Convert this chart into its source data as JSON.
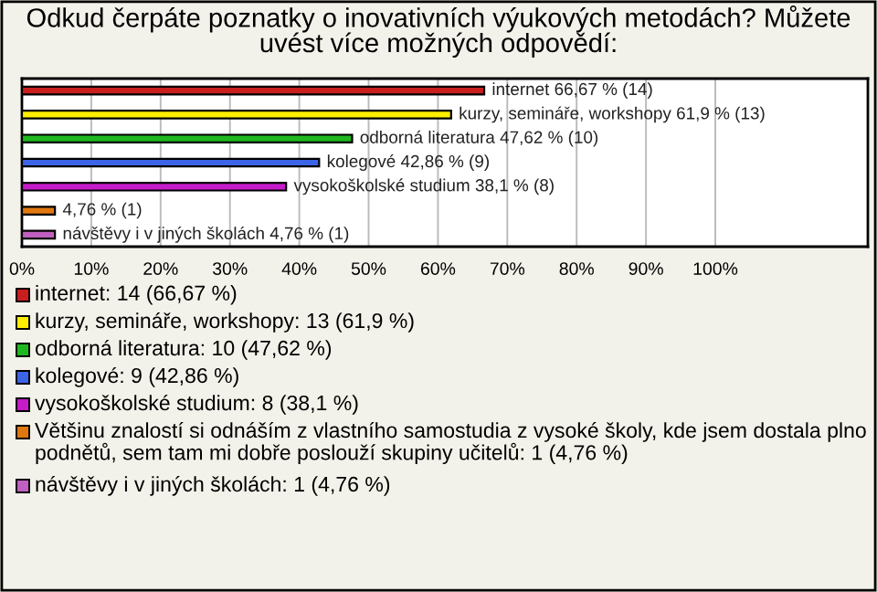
{
  "chart_data": {
    "type": "bar",
    "orientation": "horizontal",
    "title": "Odkud čerpáte poznatky o inovativních výukových metodách? Můžete uvést více možných odpovědí:",
    "categories": [
      null,
      null,
      null,
      null,
      null,
      null,
      null
    ],
    "series": [
      {
        "name": "internet: 14 (66,67 %)",
        "color": "#c81e1e",
        "values": [
          66.67,
          null,
          null,
          null,
          null,
          null,
          null
        ],
        "value_labels": [
          "internet 66,67 % (14)",
          null,
          null,
          null,
          null,
          null,
          null
        ]
      },
      {
        "name": "kurzy, semináře, workshopy: 13 (61,9 %)",
        "color": "#ffee00",
        "values": [
          null,
          61.9,
          null,
          null,
          null,
          null,
          null
        ],
        "value_labels": [
          null,
          "kurzy, semináře, workshopy 61,9 % (13)",
          null,
          null,
          null,
          null,
          null
        ]
      },
      {
        "name": "odborná literatura: 10 (47,62 %)",
        "color": "#20b820",
        "values": [
          null,
          null,
          47.62,
          null,
          null,
          null,
          null
        ],
        "value_labels": [
          null,
          null,
          "odborná literatura 47,62 % (10)",
          null,
          null,
          null,
          null
        ]
      },
      {
        "name": "kolegové: 9 (42,86 %)",
        "color": "#3c64e6",
        "values": [
          null,
          null,
          null,
          42.86,
          null,
          null,
          null
        ],
        "value_labels": [
          null,
          null,
          null,
          "kolegové 42,86 % (9)",
          null,
          null,
          null
        ]
      },
      {
        "name": "vysokoškolské studium: 8 (38,1 %)",
        "color": "#c41cc8",
        "values": [
          null,
          null,
          null,
          null,
          38.1,
          null,
          null
        ],
        "value_labels": [
          null,
          null,
          null,
          null,
          "vysokoškolské studium 38,1 % (8)",
          null,
          null
        ]
      },
      {
        "name": "Většinu znalostí si odnáším z vlastního samostudia z vysoké školy, kde jsem dostala plno podnětů, sem tam mi dobře poslouží skupiny učitelů: 1 (4,76 %)",
        "color": "#e07810",
        "values": [
          null,
          null,
          null,
          null,
          null,
          4.76,
          null
        ],
        "value_labels": [
          null,
          null,
          null,
          null,
          null,
          "4,76 % (1)",
          null
        ]
      },
      {
        "name": "návštěvy i v jiných školách: 1 (4,76 %)",
        "color": "#c060c0",
        "values": [
          null,
          null,
          null,
          null,
          null,
          null,
          4.76
        ],
        "value_labels": [
          null,
          null,
          null,
          null,
          null,
          null,
          "návštěvy i v jiných školách 4,76 % (1)"
        ]
      }
    ],
    "xlim": [
      0,
      122
    ],
    "xticks": [
      {
        "value": 0,
        "label": "0%"
      },
      {
        "value": 10,
        "label": "10%"
      },
      {
        "value": 20,
        "label": "20%"
      },
      {
        "value": 30,
        "label": "30%"
      },
      {
        "value": 40,
        "label": "40%"
      },
      {
        "value": 50,
        "label": "50%"
      },
      {
        "value": 60,
        "label": "60%"
      },
      {
        "value": 70,
        "label": "70%"
      },
      {
        "value": 80,
        "label": "80%"
      },
      {
        "value": 90,
        "label": "90%"
      },
      {
        "value": 100,
        "label": "100%"
      }
    ],
    "grid": "x",
    "legend": "bottom"
  }
}
